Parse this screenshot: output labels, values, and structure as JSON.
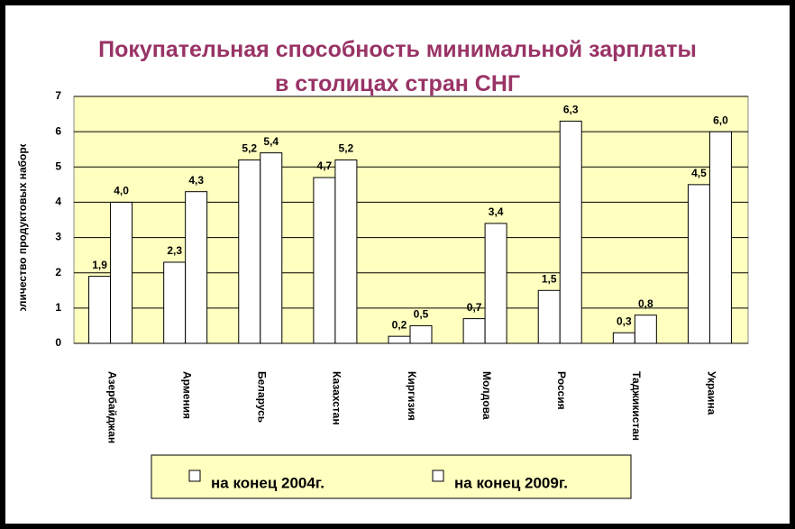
{
  "chart_data": {
    "type": "bar",
    "title": "Покупательная способность минимальной зарплаты в столицах стран СНГ",
    "y_label": "Количество продуктовых наборов",
    "categories": [
      "Азербайджан",
      "Армения",
      "Беларусь",
      "Казахстан",
      "Киргизия",
      "Молдова",
      "Россия",
      "Таджикистан",
      "Украина"
    ],
    "series": [
      {
        "name": "на конец 2004г.",
        "color": "#ffffff",
        "values": [
          1.9,
          2.3,
          5.2,
          4.7,
          0.2,
          0.7,
          1.5,
          0.3,
          4.5
        ],
        "value_labels": [
          "1,9",
          "2,3",
          "5,2",
          "4,7",
          "0,2",
          "0,7",
          "1,5",
          "0,3",
          "4,5"
        ]
      },
      {
        "name": "на конец 2009г.",
        "color": "#ffffff",
        "values": [
          4.0,
          4.3,
          5.4,
          5.2,
          0.5,
          3.4,
          6.3,
          0.8,
          6.0
        ],
        "value_labels": [
          "4,0",
          "4,3",
          "5,4",
          "5,2",
          "0,5",
          "3,4",
          "6,3",
          "0,8",
          "6,0"
        ]
      }
    ],
    "ylim": [
      0,
      7
    ],
    "yticks": [
      0,
      1,
      2,
      3,
      4,
      5,
      6,
      7
    ],
    "grid": true,
    "plot_background": "#ffffc0",
    "legend": "bottom"
  }
}
